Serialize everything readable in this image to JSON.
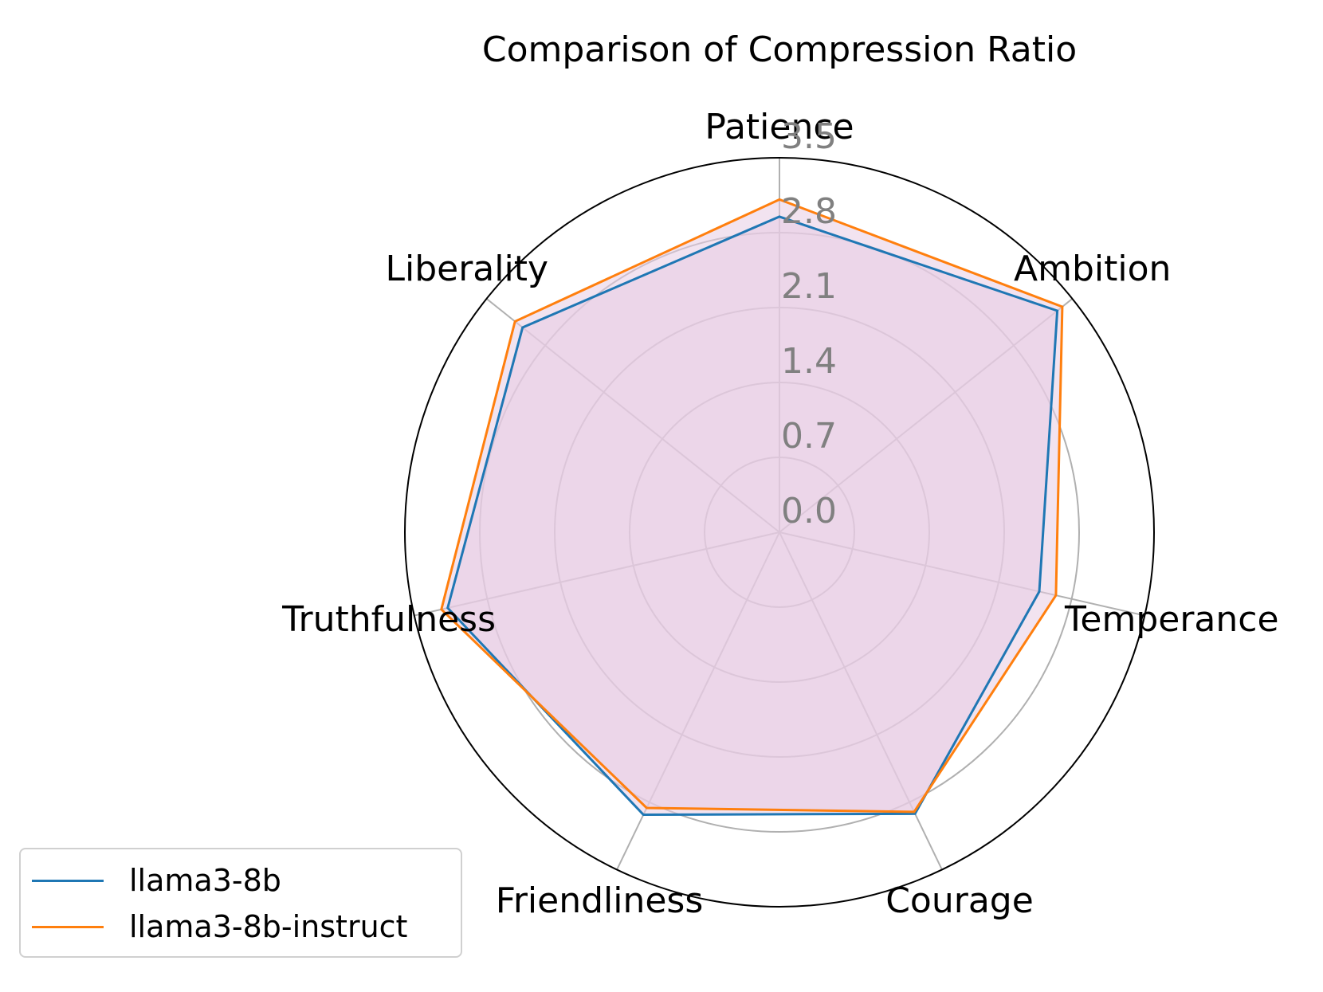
{
  "chart_data": {
    "type": "radar",
    "title": "Comparison of Compression Ratio",
    "categories": [
      "Patience",
      "Ambition",
      "Temperance",
      "Courage",
      "Friendliness",
      "Truthfulness",
      "Liberality"
    ],
    "radial_ticks": [
      "0.0",
      "0.7",
      "1.4",
      "2.1",
      "2.8",
      "3.5"
    ],
    "rlim": [
      0,
      3.5
    ],
    "grid": true,
    "series": [
      {
        "name": "llama3-8b",
        "color": "#1f77b4",
        "values": [
          2.95,
          3.32,
          2.49,
          2.92,
          2.93,
          3.18,
          3.07
        ]
      },
      {
        "name": "llama3-8b-instruct",
        "color": "#ff7f0e",
        "values": [
          3.11,
          3.38,
          2.65,
          2.9,
          2.86,
          3.24,
          3.16
        ]
      }
    ],
    "fill_color": "#e7cce3",
    "legend": {
      "position": "lower-left"
    }
  }
}
